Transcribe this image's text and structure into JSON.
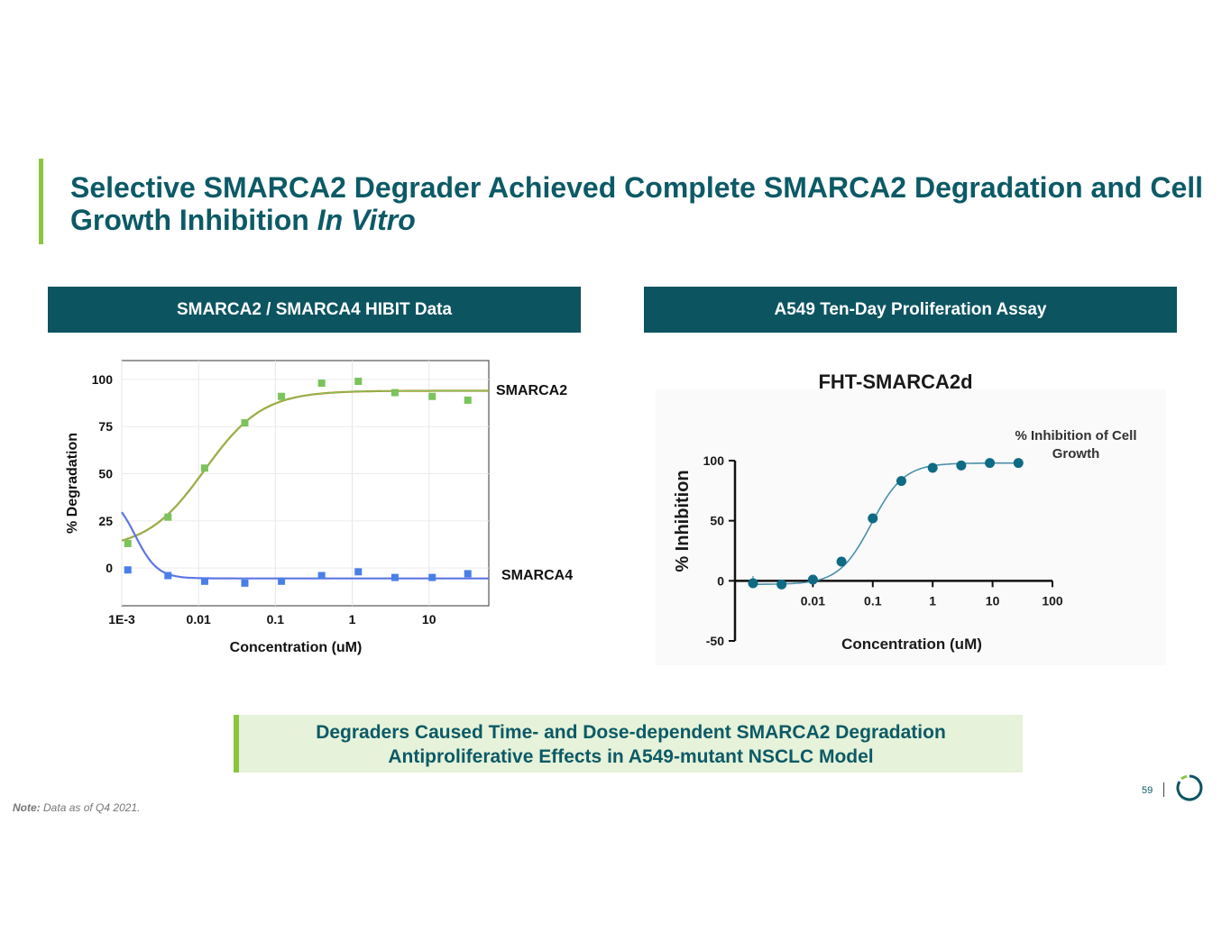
{
  "slide": {
    "title_main": "Selective SMARCA2 Degrader Achieved Complete SMARCA2 Degradation and Cell Growth Inhibition",
    "title_italic": "In Vitro",
    "left_header": "SMARCA2 / SMARCA4 HIBIT Data",
    "right_header": "A549 Ten-Day Proliferation Assay",
    "callout_line1": "Degraders Caused Time- and Dose-dependent SMARCA2 Degradation",
    "callout_line2": "Antiproliferative Effects in A549-mutant NSCLC Model",
    "note_label": "Note:",
    "note_text": "Data as of Q4 2021.",
    "page_number": "59",
    "colors": {
      "title": "#0c5a66",
      "header_bg": "#0c5460",
      "accent": "#8cc63f",
      "callout_bg": "#e6f2d9"
    }
  },
  "chart_data": [
    {
      "type": "scatter",
      "title": "",
      "xlabel": "Concentration (uM)",
      "ylabel": "% Degradation",
      "x_scale": "log",
      "xlim": [
        0.001,
        60
      ],
      "ylim": [
        -20,
        110
      ],
      "x_ticks": [
        0.001,
        0.01,
        0.1,
        1,
        10
      ],
      "x_tick_labels": [
        "1E-3",
        "0.01",
        "0.1",
        "1",
        "10"
      ],
      "y_ticks": [
        0,
        25,
        50,
        75,
        100
      ],
      "y_tick_labels": [
        "0",
        "25",
        "50",
        "75",
        "100"
      ],
      "grid": true,
      "series": [
        {
          "name": "SMARCA2",
          "color": "#7cc35c",
          "fit_color": "#c0851e",
          "x": [
            0.0012,
            0.004,
            0.012,
            0.04,
            0.12,
            0.4,
            1.2,
            3.6,
            11,
            32
          ],
          "y": [
            13,
            27,
            53,
            77,
            91,
            98,
            99,
            93,
            91,
            89
          ]
        },
        {
          "name": "SMARCA4",
          "color": "#4a7fe8",
          "fit_color": "#7b6ae0",
          "x": [
            0.0012,
            0.004,
            0.012,
            0.04,
            0.12,
            0.4,
            1.2,
            3.6,
            11,
            32
          ],
          "y": [
            -1,
            -4,
            -7,
            -8,
            -7,
            -4,
            -2,
            -5,
            -5,
            -3
          ]
        }
      ]
    },
    {
      "type": "scatter",
      "title": "FHT-SMARCA2d",
      "xlabel": "Concentration (uM)",
      "ylabel": "% Inhibition",
      "x_scale": "log",
      "xlim": [
        0.0005,
        100
      ],
      "ylim": [
        -50,
        100
      ],
      "x_ticks": [
        0.01,
        0.1,
        1,
        10,
        100
      ],
      "x_tick_labels": [
        "0.01",
        "0.1",
        "1",
        "10",
        "100"
      ],
      "y_ticks": [
        -50,
        0,
        50,
        100
      ],
      "y_tick_labels": [
        "-50",
        "0",
        "50",
        "100"
      ],
      "grid": false,
      "legend": "% Inhibition of Cell Growth",
      "series": [
        {
          "name": "% Inhibition of Cell Growth",
          "color": "#0f6a84",
          "x": [
            0.001,
            0.003,
            0.01,
            0.03,
            0.1,
            0.3,
            1,
            3,
            9,
            27
          ],
          "y": [
            -2,
            -3,
            1,
            16,
            52,
            83,
            94,
            96,
            98,
            98
          ]
        }
      ]
    }
  ]
}
